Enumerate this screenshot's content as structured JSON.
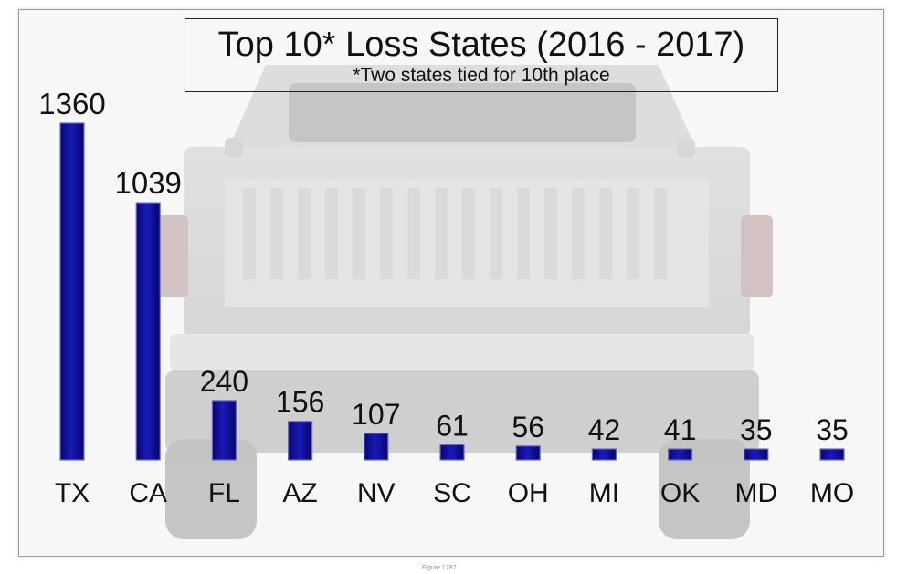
{
  "chart_data": {
    "type": "bar",
    "title": "Top 10* Loss States (2016 - 2017)",
    "subtitle": "*Two states tied for 10th place",
    "categories": [
      "TX",
      "CA",
      "FL",
      "AZ",
      "NV",
      "SC",
      "OH",
      "MI",
      "OK",
      "MD",
      "MO"
    ],
    "values": [
      1360,
      1039,
      240,
      156,
      107,
      61,
      56,
      42,
      41,
      35,
      35
    ],
    "data_labels": [
      "1360",
      "1039",
      "240",
      "156",
      "107",
      "61",
      "56",
      "42",
      "41",
      "35",
      "35"
    ],
    "xlabel": "",
    "ylabel": "",
    "ylim": [
      0,
      1360
    ],
    "grid": false,
    "legend": "none",
    "bar_color": "#0a0a8c",
    "background_image": "pickup-truck-rear-view-photo"
  },
  "caption": "Figure 1787"
}
